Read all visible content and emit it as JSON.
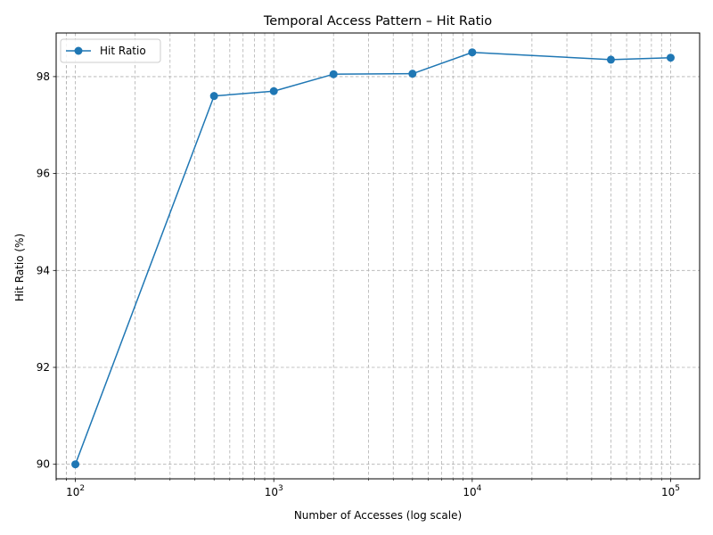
{
  "chart_data": {
    "type": "line",
    "title": "Temporal Access Pattern – Hit Ratio",
    "xlabel": "Number of Accesses (log scale)",
    "ylabel": "Hit Ratio (%)",
    "x_scale": "log",
    "xlim": [
      80,
      140000
    ],
    "ylim": [
      89.7,
      98.9
    ],
    "grid": true,
    "grid_style": "dashed",
    "legend_position": "top-left",
    "x_major_ticks": [
      {
        "value": 100,
        "base": "10",
        "exp": "2"
      },
      {
        "value": 1000,
        "base": "10",
        "exp": "3"
      },
      {
        "value": 10000,
        "base": "10",
        "exp": "4"
      },
      {
        "value": 100000,
        "base": "10",
        "exp": "5"
      }
    ],
    "y_ticks": [
      {
        "value": 90,
        "label": "90"
      },
      {
        "value": 92,
        "label": "92"
      },
      {
        "value": 94,
        "label": "94"
      },
      {
        "value": 96,
        "label": "96"
      },
      {
        "value": 98,
        "label": "98"
      }
    ],
    "series": [
      {
        "name": "Hit Ratio",
        "color": "#1f77b4",
        "marker": "circle",
        "x": [
          100,
          500,
          1000,
          2000,
          5000,
          10000,
          50000,
          100000
        ],
        "y": [
          90.0,
          97.6,
          97.7,
          98.05,
          98.06,
          98.5,
          98.35,
          98.39
        ]
      }
    ]
  }
}
